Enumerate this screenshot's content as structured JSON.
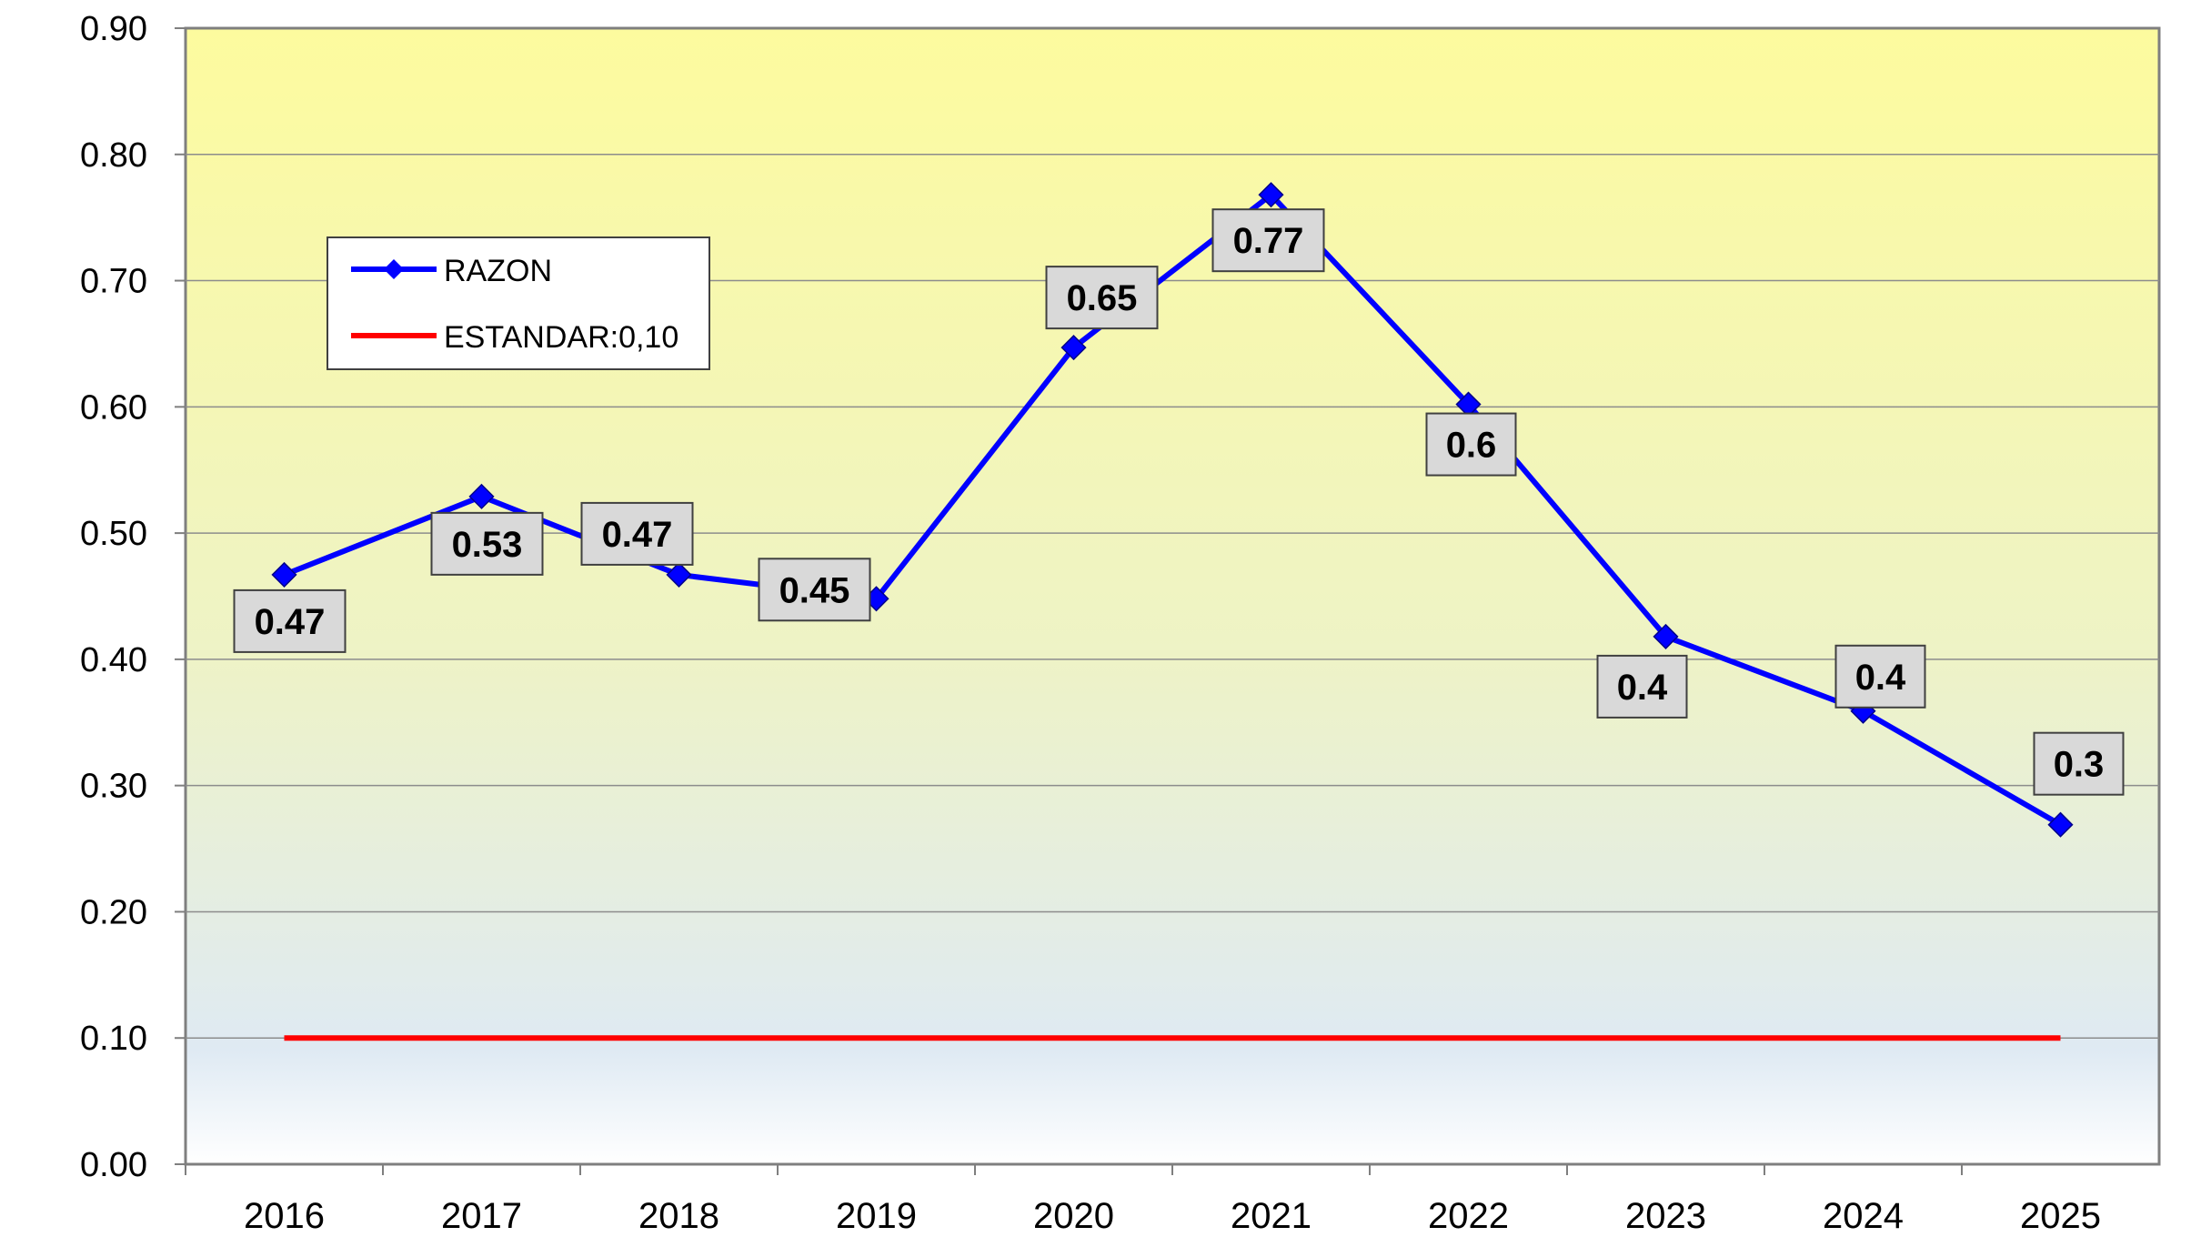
{
  "chart_data": {
    "type": "line",
    "title": "",
    "xlabel": "",
    "ylabel": "",
    "categories": [
      "2016",
      "2017",
      "2018",
      "2019",
      "2020",
      "2021",
      "2022",
      "2023",
      "2024",
      "2025"
    ],
    "ylim": [
      0,
      0.9
    ],
    "yticks": [
      "0.00",
      "0.10",
      "0.20",
      "0.30",
      "0.40",
      "0.50",
      "0.60",
      "0.70",
      "0.80",
      "0.90"
    ],
    "grid": true,
    "legend_placement": "top-left",
    "series": [
      {
        "name": "RAZON",
        "values": [
          0.467,
          0.529,
          0.467,
          0.448,
          0.647,
          0.768,
          0.602,
          0.418,
          0.359,
          0.269
        ],
        "data_labels": [
          "0.47",
          "0.53",
          "0.47",
          "0.45",
          "0.65",
          "0.77",
          "0.6",
          "0.4",
          "0.4",
          "0.3"
        ],
        "color": "#0000ff",
        "marker": "diamond"
      },
      {
        "name": "ESTANDAR:0,10",
        "values": [
          0.1,
          0.1,
          0.1,
          0.1,
          0.1,
          0.1,
          0.1,
          0.1,
          0.1,
          0.1
        ],
        "color": "#ff0000"
      }
    ],
    "background_gradient": [
      "#fdfb9e",
      "#dfeaf3",
      "#ffffff"
    ]
  }
}
